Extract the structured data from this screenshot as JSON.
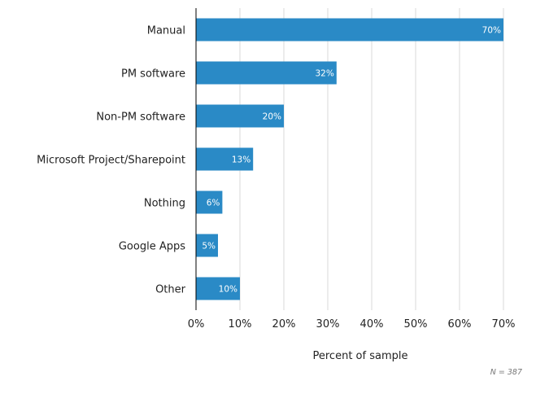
{
  "chart_data": {
    "type": "bar",
    "orientation": "horizontal",
    "categories": [
      "Manual",
      "PM software",
      "Non-PM software",
      "Microsoft Project/Sharepoint",
      "Nothing",
      "Google Apps",
      "Other"
    ],
    "values": [
      70,
      32,
      20,
      13,
      6,
      5,
      10
    ],
    "data_labels": [
      "70%",
      "32%",
      "20%",
      "13%",
      "6%",
      "5%",
      "10%"
    ],
    "xlabel": "Percent of sample",
    "ylabel": "",
    "xlim": [
      0,
      70
    ],
    "x_ticks": [
      0,
      10,
      20,
      30,
      40,
      50,
      60,
      70
    ],
    "x_tick_labels": [
      "0%",
      "10%",
      "20%",
      "30%",
      "40%",
      "50%",
      "60%",
      "70%"
    ],
    "grid": "vertical",
    "annotation": "N = 387",
    "bar_color": "#2a8ac6"
  }
}
